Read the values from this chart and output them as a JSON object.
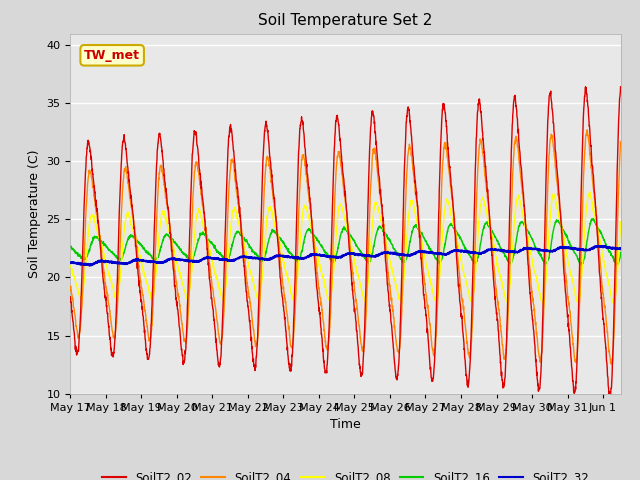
{
  "title": "Soil Temperature Set 2",
  "xlabel": "Time",
  "ylabel": "Soil Temperature (C)",
  "ylim": [
    10,
    41
  ],
  "yticks": [
    10,
    15,
    20,
    25,
    30,
    35,
    40
  ],
  "annotation": "TW_met",
  "annotation_color": "#cc0000",
  "annotation_bg": "#ffffcc",
  "annotation_border": "#ccaa00",
  "outer_bg": "#d8d8d8",
  "plot_bg": "#e8e8e8",
  "colors": {
    "SoilT2_02": "#dd0000",
    "SoilT2_04": "#ff8800",
    "SoilT2_08": "#ffff00",
    "SoilT2_16": "#00cc00",
    "SoilT2_32": "#0000cc"
  },
  "legend_labels": [
    "SoilT2_02",
    "SoilT2_04",
    "SoilT2_08",
    "SoilT2_16",
    "SoilT2_32"
  ],
  "xticklabels": [
    "May 17",
    "May 18",
    "May 19",
    "May 20",
    "May 21",
    "May 22",
    "May 23",
    "May 24",
    "May 25",
    "May 26",
    "May 27",
    "May 28",
    "May 29",
    "May 30",
    "May 31",
    "Jun 1"
  ],
  "n_days": 15.5,
  "samples_per_day": 144
}
